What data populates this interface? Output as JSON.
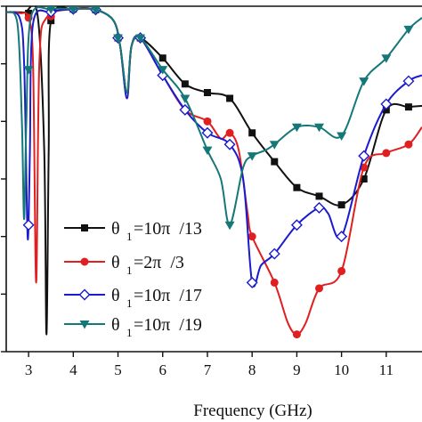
{
  "chart_data": {
    "type": "line",
    "title": "",
    "xlabel": "Frequency (GHz)",
    "ylabel": "",
    "xlim": [
      2.5,
      11.8
    ],
    "ylim": [
      -60,
      0
    ],
    "ytick_values": [
      -60,
      -50,
      -40,
      -30,
      -20,
      -10,
      0
    ],
    "xticks": [
      {
        "value": 3,
        "label": "3"
      },
      {
        "value": 4,
        "label": "4"
      },
      {
        "value": 5,
        "label": "5"
      },
      {
        "value": 6,
        "label": "6"
      },
      {
        "value": 7,
        "label": "7"
      },
      {
        "value": 8,
        "label": "8"
      },
      {
        "value": 9,
        "label": "9"
      },
      {
        "value": 10,
        "label": "10"
      },
      {
        "value": 11,
        "label": "11"
      }
    ],
    "legend_position": "bottom-left",
    "series": [
      {
        "name_parts": [
          "θ",
          "1",
          "=10π  /13"
        ],
        "color": "#111111",
        "marker": "square",
        "markers_at": [
          3,
          3.5,
          4,
          4.5,
          5,
          5.5,
          6,
          6.5,
          7,
          7.5,
          8,
          8.5,
          9,
          9.5,
          10,
          10.5,
          11,
          11.5
        ],
        "points": [
          [
            2.5,
            -1
          ],
          [
            2.9,
            -1.1
          ],
          [
            3.2,
            -1.5
          ],
          [
            3.35,
            -25
          ],
          [
            3.4,
            -57
          ],
          [
            3.45,
            -25
          ],
          [
            3.5,
            -2.5
          ],
          [
            4,
            -0.5
          ],
          [
            4.5,
            -0.6
          ],
          [
            4.9,
            -2.5
          ],
          [
            5.05,
            -7
          ],
          [
            5.2,
            -15
          ],
          [
            5.3,
            -7
          ],
          [
            5.5,
            -5.5
          ],
          [
            6,
            -9
          ],
          [
            6.5,
            -13.5
          ],
          [
            7,
            -15
          ],
          [
            7.5,
            -16
          ],
          [
            8,
            -22
          ],
          [
            8.5,
            -27
          ],
          [
            9,
            -31.5
          ],
          [
            9.5,
            -33
          ],
          [
            10,
            -34.5
          ],
          [
            10.5,
            -30
          ],
          [
            11,
            -18
          ],
          [
            11.5,
            -17.5
          ],
          [
            11.8,
            -17.3
          ]
        ]
      },
      {
        "name_parts": [
          "θ",
          "1",
          "=2π  /3"
        ],
        "color": "#e02020",
        "marker": "circle",
        "markers_at": [
          3,
          3.5,
          4,
          4.5,
          5,
          5.5,
          6,
          6.5,
          7,
          7.5,
          8,
          8.5,
          9,
          9.5,
          10,
          10.5,
          11,
          11.5
        ],
        "points": [
          [
            2.5,
            -1
          ],
          [
            2.8,
            -1.2
          ],
          [
            3.0,
            -2
          ],
          [
            3.1,
            -10
          ],
          [
            3.17,
            -48
          ],
          [
            3.24,
            -10
          ],
          [
            3.4,
            -2
          ],
          [
            4,
            -0.5
          ],
          [
            4.5,
            -0.6
          ],
          [
            4.9,
            -2.5
          ],
          [
            5.05,
            -7
          ],
          [
            5.2,
            -16
          ],
          [
            5.3,
            -7
          ],
          [
            5.5,
            -5.5
          ],
          [
            6,
            -12
          ],
          [
            6.5,
            -18
          ],
          [
            7,
            -20
          ],
          [
            7.3,
            -23
          ],
          [
            7.5,
            -22
          ],
          [
            7.7,
            -25
          ],
          [
            7.9,
            -36
          ],
          [
            8,
            -40
          ],
          [
            8.5,
            -48
          ],
          [
            8.8,
            -55
          ],
          [
            9,
            -57
          ],
          [
            9.2,
            -55
          ],
          [
            9.5,
            -49
          ],
          [
            10,
            -46
          ],
          [
            10.5,
            -28
          ],
          [
            11,
            -25.5
          ],
          [
            11.5,
            -24
          ],
          [
            11.8,
            -21
          ]
        ]
      },
      {
        "name_parts": [
          "θ",
          "1",
          "=10π  /17"
        ],
        "color": "#1a1ad0",
        "marker": "diamond",
        "markers_at": [
          3,
          3.5,
          4,
          4.5,
          5,
          5.5,
          6,
          6.5,
          7,
          7.5,
          8,
          8.5,
          9,
          9.5,
          10,
          10.5,
          11,
          11.5
        ],
        "points": [
          [
            2.5,
            -1
          ],
          [
            2.8,
            -2
          ],
          [
            2.9,
            -10
          ],
          [
            2.97,
            -38
          ],
          [
            3.0,
            -38
          ],
          [
            3.03,
            -25
          ],
          [
            3.1,
            -3
          ],
          [
            3.5,
            -1
          ],
          [
            4,
            -0.5
          ],
          [
            4.5,
            -0.6
          ],
          [
            4.9,
            -2.5
          ],
          [
            5.05,
            -7
          ],
          [
            5.2,
            -16
          ],
          [
            5.3,
            -7
          ],
          [
            5.5,
            -5.5
          ],
          [
            6,
            -12
          ],
          [
            6.5,
            -18
          ],
          [
            7,
            -22
          ],
          [
            7.5,
            -24
          ],
          [
            7.8,
            -30
          ],
          [
            8,
            -48
          ],
          [
            8.2,
            -45
          ],
          [
            8.5,
            -43
          ],
          [
            9,
            -38
          ],
          [
            9.5,
            -35
          ],
          [
            9.7,
            -36
          ],
          [
            10,
            -40
          ],
          [
            10.5,
            -26
          ],
          [
            11,
            -17
          ],
          [
            11.5,
            -13
          ],
          [
            11.8,
            -12
          ]
        ]
      },
      {
        "name_parts": [
          "θ",
          "1",
          "=10π  /19"
        ],
        "color": "#157878",
        "marker": "triangle-down",
        "markers_at": [
          3,
          3.5,
          4,
          4.5,
          5,
          5.5,
          6,
          6.5,
          7,
          7.5,
          8,
          8.5,
          9,
          9.5,
          10,
          10.5,
          11,
          11.5
        ],
        "points": [
          [
            2.5,
            -1
          ],
          [
            2.75,
            -3
          ],
          [
            2.85,
            -20
          ],
          [
            2.9,
            -37
          ],
          [
            2.95,
            -20
          ],
          [
            3.05,
            -2
          ],
          [
            3.5,
            -0.5
          ],
          [
            4,
            -0.5
          ],
          [
            4.5,
            -0.6
          ],
          [
            4.9,
            -2.5
          ],
          [
            5.05,
            -7
          ],
          [
            5.2,
            -15
          ],
          [
            5.3,
            -7
          ],
          [
            5.5,
            -5.5
          ],
          [
            6,
            -11
          ],
          [
            6.5,
            -16
          ],
          [
            7,
            -25
          ],
          [
            7.3,
            -30
          ],
          [
            7.5,
            -38
          ],
          [
            7.8,
            -28
          ],
          [
            8,
            -26
          ],
          [
            8.3,
            -25
          ],
          [
            8.5,
            -24
          ],
          [
            9,
            -21
          ],
          [
            9.5,
            -21
          ],
          [
            10,
            -22.5
          ],
          [
            10.5,
            -13
          ],
          [
            11,
            -9
          ],
          [
            11.5,
            -4
          ],
          [
            11.8,
            -2
          ]
        ]
      }
    ]
  }
}
